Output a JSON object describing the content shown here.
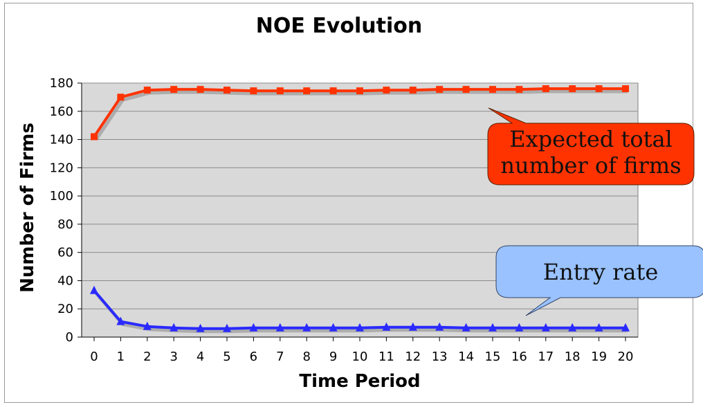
{
  "chart_data": {
    "type": "line",
    "title": "NOE Evolution",
    "xlabel": "Time Period",
    "ylabel": "Number of Firms",
    "x": [
      0,
      1,
      2,
      3,
      4,
      5,
      6,
      7,
      8,
      9,
      10,
      11,
      12,
      13,
      14,
      15,
      16,
      17,
      18,
      19,
      20
    ],
    "ylim": [
      0,
      180
    ],
    "yticks": [
      0,
      20,
      40,
      60,
      80,
      100,
      120,
      140,
      160,
      180
    ],
    "grid": true,
    "plot_background": "#d9d9d9",
    "series": [
      {
        "key": "total",
        "color": "#ff3300",
        "marker": "square",
        "values": [
          142,
          170,
          175,
          175.5,
          175.5,
          175,
          174.5,
          174.5,
          174.5,
          174.5,
          174.5,
          175,
          175,
          175.5,
          175.5,
          175.5,
          175.5,
          176,
          176,
          176,
          176
        ]
      },
      {
        "key": "entry",
        "color": "#2a2aff",
        "marker": "triangle",
        "values": [
          33,
          11,
          7.5,
          6.5,
          6,
          6,
          6.5,
          6.5,
          6.5,
          6.5,
          6.5,
          7,
          7,
          7,
          6.5,
          6.5,
          6.5,
          6.5,
          6.5,
          6.5,
          6.5
        ]
      }
    ],
    "annotations": [
      {
        "key": "total_callout",
        "lines": [
          "Expected total",
          "number of firms"
        ],
        "fill": "#ff3300"
      },
      {
        "key": "entry_callout",
        "lines": [
          "Entry rate"
        ],
        "fill": "#99c2ff"
      }
    ]
  }
}
